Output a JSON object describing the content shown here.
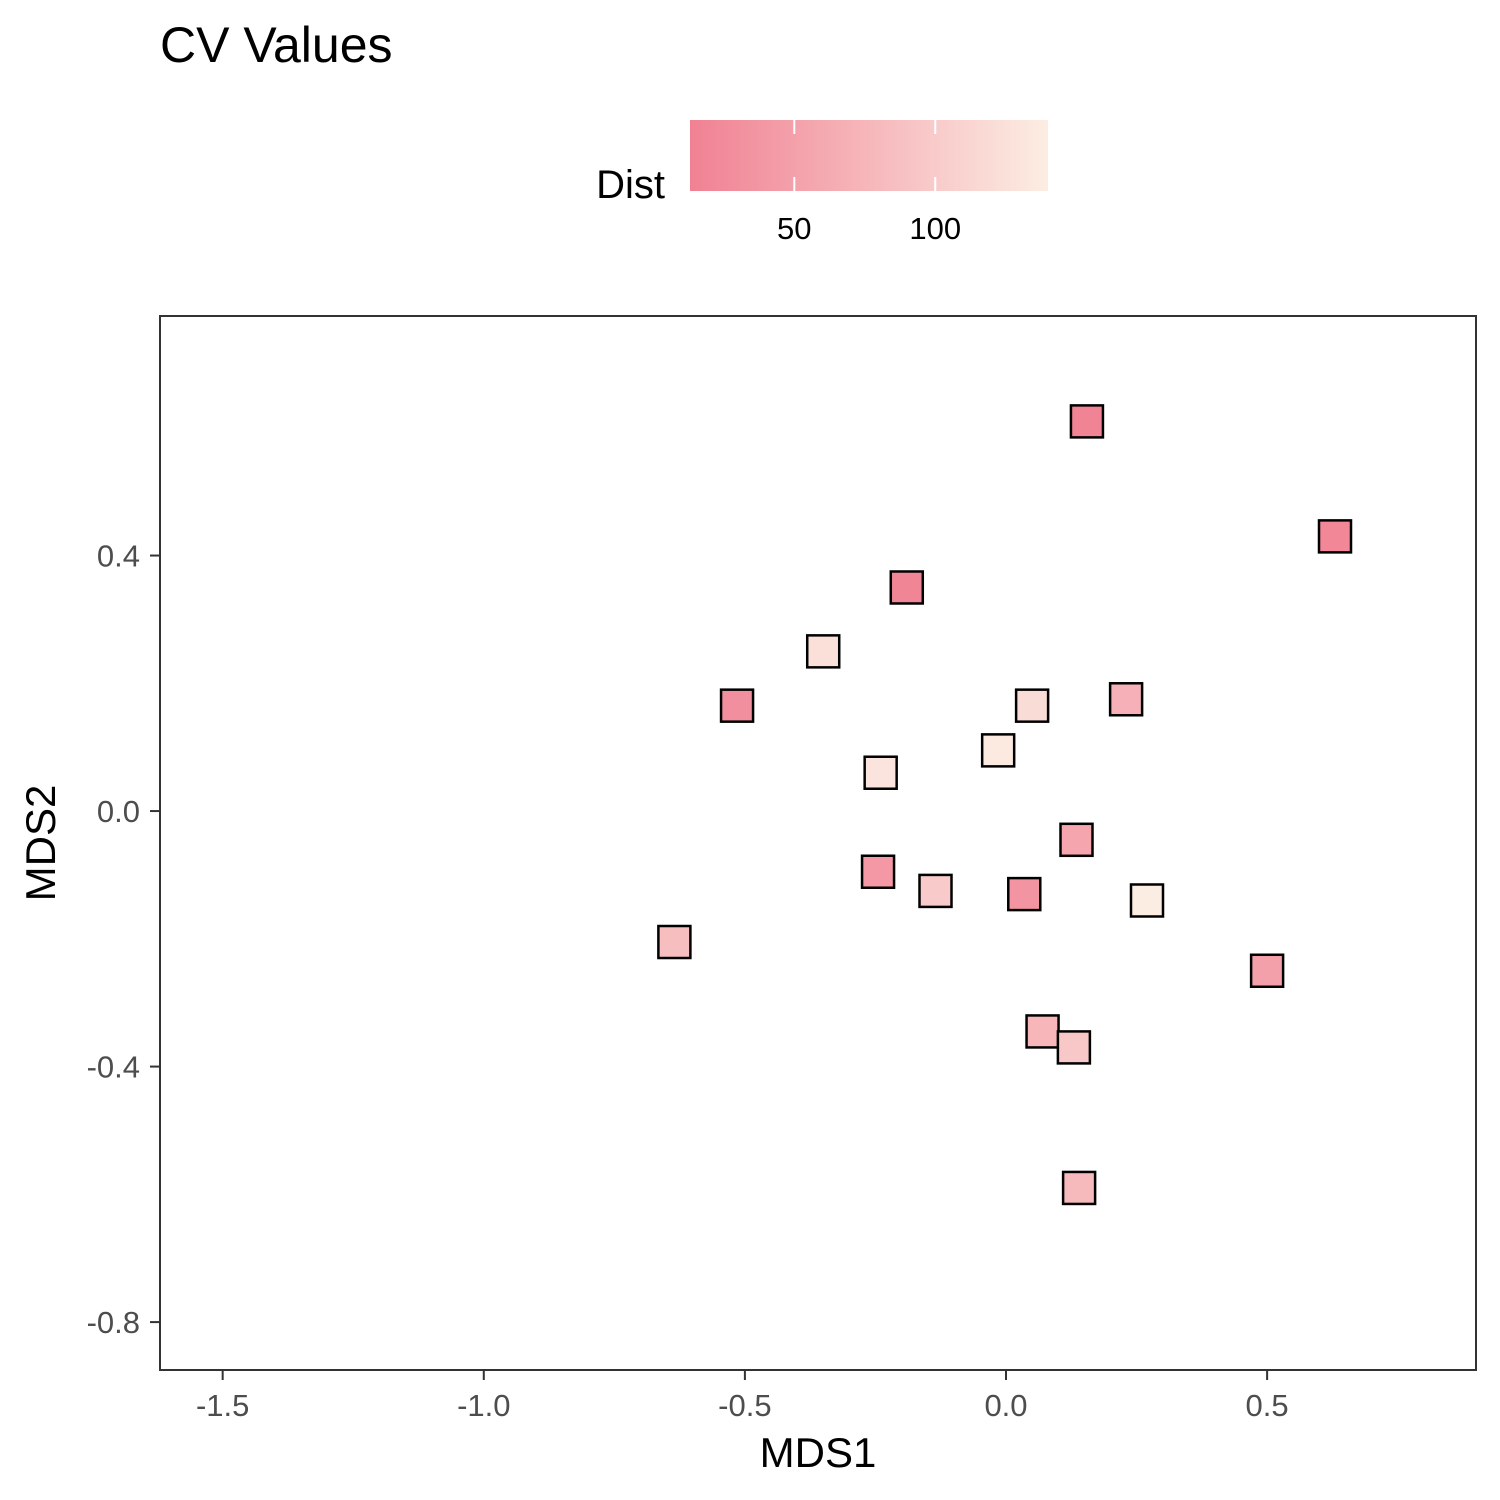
{
  "chart_data": {
    "type": "scatter",
    "title": "CV Values",
    "xlabel": "MDS1",
    "ylabel": "MDS2",
    "xlim": [
      -1.62,
      0.9
    ],
    "ylim": [
      -0.875,
      0.775
    ],
    "x_ticks": [
      -1.5,
      -1.0,
      -0.5,
      0.0,
      0.5
    ],
    "x_tick_labels": [
      "-1.5",
      "-1.0",
      "-0.5",
      "0.0",
      "0.5"
    ],
    "y_ticks": [
      0.4,
      0.0,
      -0.4,
      -0.8
    ],
    "y_tick_labels": [
      "0.4",
      "0.0",
      "-0.4",
      "-0.8"
    ],
    "grid": false,
    "marker": "square",
    "legend": {
      "title": "Dist",
      "placement": "top",
      "range": [
        13,
        140
      ],
      "ticks": [
        50,
        100
      ],
      "tick_labels": [
        "50",
        "100"
      ],
      "color_low": "#f08193",
      "color_high": "#fcede3"
    },
    "points": [
      {
        "x": 0.155,
        "y": 0.61,
        "dist": 15
      },
      {
        "x": 0.63,
        "y": 0.43,
        "dist": 20
      },
      {
        "x": -0.19,
        "y": 0.35,
        "dist": 18
      },
      {
        "x": -0.35,
        "y": 0.25,
        "dist": 125
      },
      {
        "x": -0.515,
        "y": 0.165,
        "dist": 30
      },
      {
        "x": 0.05,
        "y": 0.165,
        "dist": 120
      },
      {
        "x": 0.23,
        "y": 0.175,
        "dist": 70
      },
      {
        "x": -0.015,
        "y": 0.095,
        "dist": 135
      },
      {
        "x": -0.24,
        "y": 0.06,
        "dist": 130
      },
      {
        "x": 0.135,
        "y": -0.045,
        "dist": 55
      },
      {
        "x": -0.245,
        "y": -0.095,
        "dist": 40
      },
      {
        "x": -0.135,
        "y": -0.125,
        "dist": 100
      },
      {
        "x": 0.035,
        "y": -0.13,
        "dist": 35
      },
      {
        "x": 0.27,
        "y": -0.14,
        "dist": 140
      },
      {
        "x": -0.635,
        "y": -0.205,
        "dist": 85
      },
      {
        "x": 0.5,
        "y": -0.25,
        "dist": 50
      },
      {
        "x": 0.07,
        "y": -0.345,
        "dist": 75
      },
      {
        "x": 0.13,
        "y": -0.37,
        "dist": 95
      },
      {
        "x": 0.14,
        "y": -0.59,
        "dist": 80
      }
    ]
  }
}
